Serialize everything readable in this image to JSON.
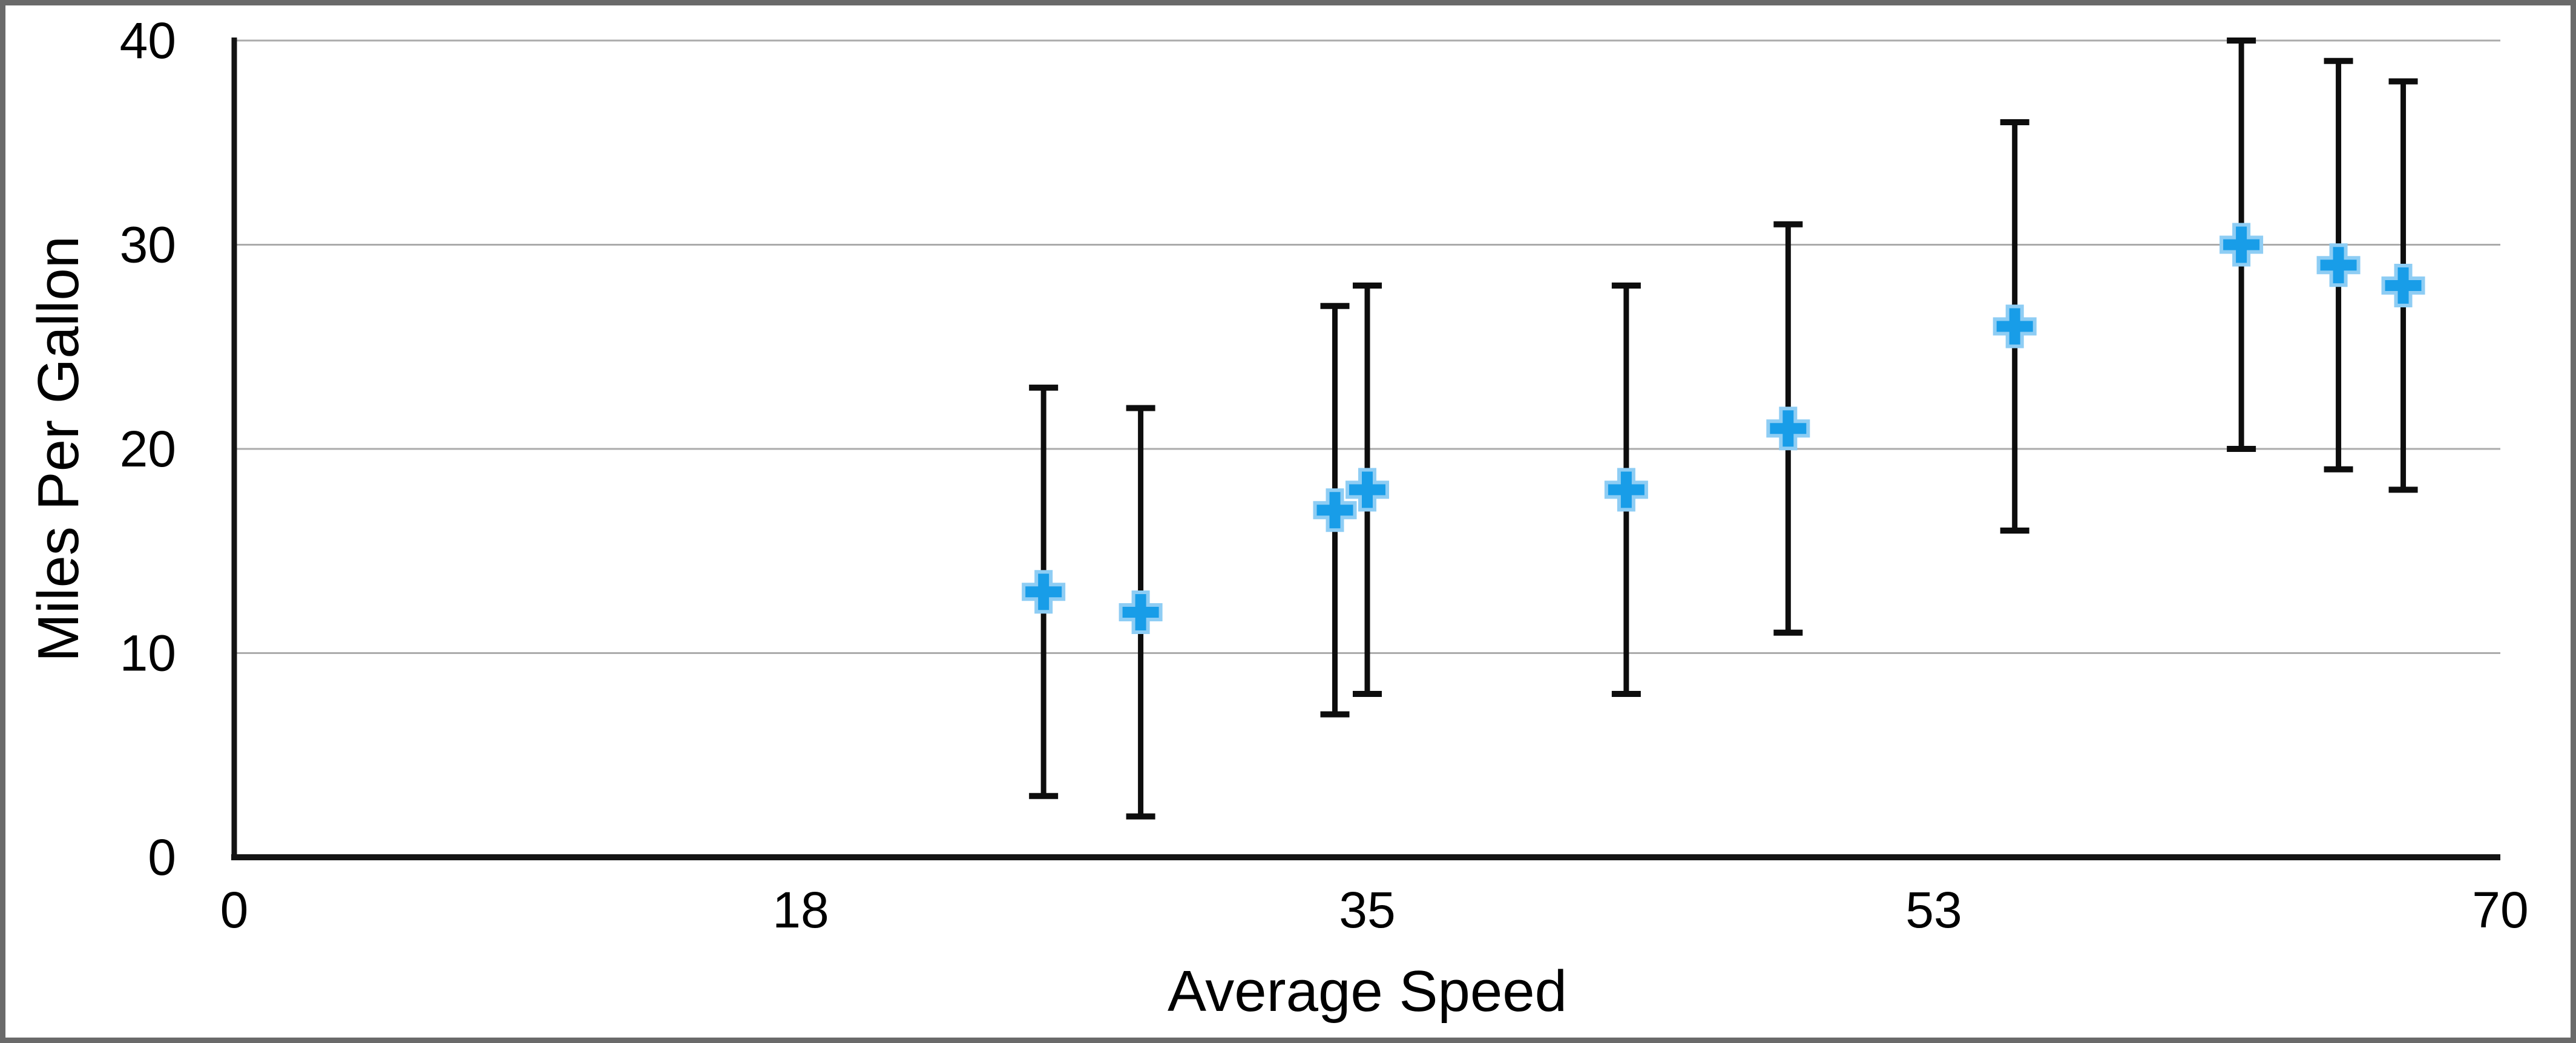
{
  "window": {
    "background": "#FFFFFF",
    "border_color": "#6A6A6A"
  },
  "chart_data": {
    "type": "scatter",
    "title": "",
    "xlabel": "Average Speed",
    "ylabel": "Miles Per Gallon",
    "xlim": [
      0,
      70
    ],
    "ylim": [
      0,
      40
    ],
    "grid": "horizontal-gridlines-only",
    "legend": "none",
    "x_ticks": [
      {
        "value": 0,
        "label": "0"
      },
      {
        "value": 17.5,
        "label": "18"
      },
      {
        "value": 35,
        "label": "35"
      },
      {
        "value": 52.5,
        "label": "53"
      },
      {
        "value": 70,
        "label": "70"
      }
    ],
    "y_ticks": [
      {
        "value": 0,
        "label": "0"
      },
      {
        "value": 10,
        "label": "10"
      },
      {
        "value": 20,
        "label": "20"
      },
      {
        "value": 30,
        "label": "30"
      },
      {
        "value": 40,
        "label": "40"
      }
    ],
    "error_bars": {
      "axis": "y",
      "type": "fixed",
      "value": 10,
      "direction": "both"
    },
    "series": [
      {
        "name": "Miles Per Gallon",
        "marker": "plus",
        "points": [
          {
            "x": 25,
            "y": 13
          },
          {
            "x": 28,
            "y": 12
          },
          {
            "x": 34,
            "y": 17
          },
          {
            "x": 35,
            "y": 18
          },
          {
            "x": 43,
            "y": 18
          },
          {
            "x": 48,
            "y": 21
          },
          {
            "x": 55,
            "y": 26
          },
          {
            "x": 62,
            "y": 30
          },
          {
            "x": 65,
            "y": 29
          },
          {
            "x": 67,
            "y": 28
          }
        ]
      }
    ],
    "colors": {
      "marker_fill": "#189DE8",
      "marker_edge": "#8ECDF4",
      "error_bar": "#0D0D0D",
      "axis": "#141414",
      "gridline": "#ABABAB",
      "text": "#000000"
    }
  }
}
